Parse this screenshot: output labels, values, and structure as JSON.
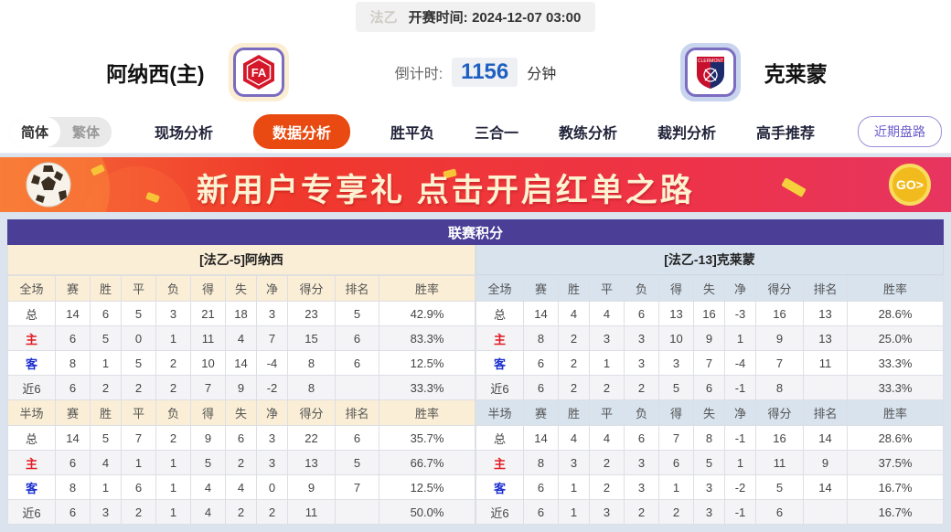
{
  "topbar": {
    "league": "法乙",
    "kickoff_label": "开赛时间:",
    "kickoff_time": "2024-12-07 03:00"
  },
  "match": {
    "home_team": "阿纳西(主)",
    "away_team": "克莱蒙",
    "countdown_label": "倒计时:",
    "countdown_value": "1156",
    "countdown_unit": "分钟"
  },
  "nav": {
    "lang_simplified": "简体",
    "lang_traditional": "繁体",
    "tabs": [
      {
        "key": "live-analysis",
        "label": "现场分析",
        "active": false
      },
      {
        "key": "data-analysis",
        "label": "数据分析",
        "active": true
      },
      {
        "key": "win-draw-lose",
        "label": "胜平负",
        "active": false
      },
      {
        "key": "three-in-one",
        "label": "三合一",
        "active": false
      },
      {
        "key": "coach-analysis",
        "label": "教练分析",
        "active": false
      },
      {
        "key": "referee-analysis",
        "label": "裁判分析",
        "active": false
      },
      {
        "key": "expert-picks",
        "label": "高手推荐",
        "active": false
      }
    ],
    "recent_trend_button": "近期盘路"
  },
  "banner": {
    "text": "新用户专享礼  点击开启红单之路",
    "go_label": "GO>",
    "soccer_ball_icon": "soccer-ball",
    "accent_color": "#f7c437",
    "bg_gradient": [
      "#f46a35",
      "#ee3347",
      "#e73560"
    ]
  },
  "league_table": {
    "title": "联赛积分",
    "home": {
      "team_header": "[法乙-5]阿纳西",
      "full": {
        "columns": [
          "全场",
          "赛",
          "胜",
          "平",
          "负",
          "得",
          "失",
          "净",
          "得分",
          "排名",
          "胜率"
        ],
        "rows": [
          [
            "总",
            "14",
            "6",
            "5",
            "3",
            "21",
            "18",
            "3",
            "23",
            "5",
            "42.9%"
          ],
          [
            "主",
            "6",
            "5",
            "0",
            "1",
            "11",
            "4",
            "7",
            "15",
            "6",
            "83.3%"
          ],
          [
            "客",
            "8",
            "1",
            "5",
            "2",
            "10",
            "14",
            "-4",
            "8",
            "6",
            "12.5%"
          ],
          [
            "近6",
            "6",
            "2",
            "2",
            "2",
            "7",
            "9",
            "-2",
            "8",
            "",
            "33.3%"
          ]
        ]
      },
      "half": {
        "columns": [
          "半场",
          "赛",
          "胜",
          "平",
          "负",
          "得",
          "失",
          "净",
          "得分",
          "排名",
          "胜率"
        ],
        "rows": [
          [
            "总",
            "14",
            "5",
            "7",
            "2",
            "9",
            "6",
            "3",
            "22",
            "6",
            "35.7%"
          ],
          [
            "主",
            "6",
            "4",
            "1",
            "1",
            "5",
            "2",
            "3",
            "13",
            "5",
            "66.7%"
          ],
          [
            "客",
            "8",
            "1",
            "6",
            "1",
            "4",
            "4",
            "0",
            "9",
            "7",
            "12.5%"
          ],
          [
            "近6",
            "6",
            "3",
            "2",
            "1",
            "4",
            "2",
            "2",
            "11",
            "",
            "50.0%"
          ]
        ]
      }
    },
    "away": {
      "team_header": "[法乙-13]克莱蒙",
      "full": {
        "columns": [
          "全场",
          "赛",
          "胜",
          "平",
          "负",
          "得",
          "失",
          "净",
          "得分",
          "排名",
          "胜率"
        ],
        "rows": [
          [
            "总",
            "14",
            "4",
            "4",
            "6",
            "13",
            "16",
            "-3",
            "16",
            "13",
            "28.6%"
          ],
          [
            "主",
            "8",
            "2",
            "3",
            "3",
            "10",
            "9",
            "1",
            "9",
            "13",
            "25.0%"
          ],
          [
            "客",
            "6",
            "2",
            "1",
            "3",
            "3",
            "7",
            "-4",
            "7",
            "11",
            "33.3%"
          ],
          [
            "近6",
            "6",
            "2",
            "2",
            "2",
            "5",
            "6",
            "-1",
            "8",
            "",
            "33.3%"
          ]
        ]
      },
      "half": {
        "columns": [
          "半场",
          "赛",
          "胜",
          "平",
          "负",
          "得",
          "失",
          "净",
          "得分",
          "排名",
          "胜率"
        ],
        "rows": [
          [
            "总",
            "14",
            "4",
            "4",
            "6",
            "7",
            "8",
            "-1",
            "16",
            "14",
            "28.6%"
          ],
          [
            "主",
            "8",
            "3",
            "2",
            "3",
            "6",
            "5",
            "1",
            "11",
            "9",
            "37.5%"
          ],
          [
            "客",
            "6",
            "1",
            "2",
            "3",
            "1",
            "3",
            "-2",
            "5",
            "14",
            "16.7%"
          ],
          [
            "近6",
            "6",
            "1",
            "3",
            "2",
            "2",
            "3",
            "-1",
            "6",
            "",
            "16.7%"
          ]
        ]
      }
    },
    "colors": {
      "title_bg": "#4a3e97",
      "home_header_bg": "#fbeed6",
      "away_header_bg": "#d8e3ee",
      "home_row_label": "#e11b22",
      "away_row_label": "#1b2ecf"
    }
  }
}
